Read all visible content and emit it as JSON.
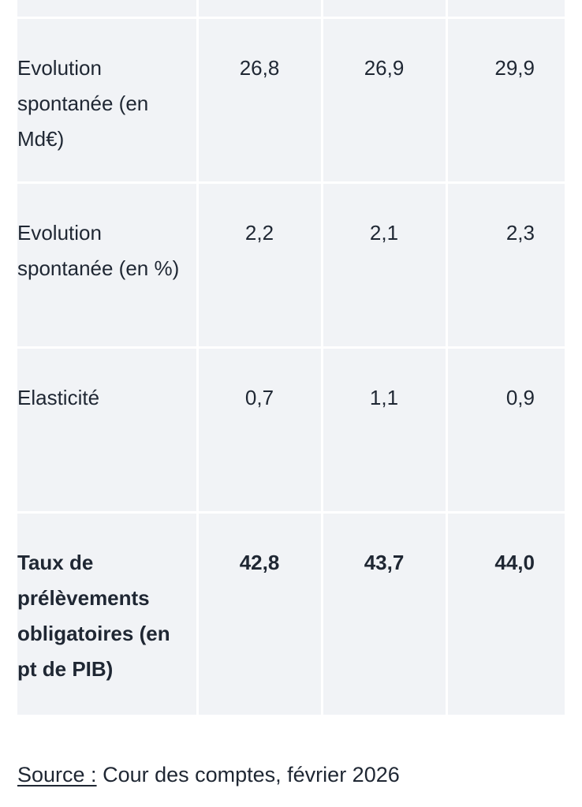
{
  "table": {
    "rows": [
      {
        "label": "Evolution spontanée (en Md€)",
        "values": [
          "26,8",
          "26,9",
          "29,9"
        ]
      },
      {
        "label": "Evolution spontanée (en %)",
        "values": [
          "2,2",
          "2,1",
          "2,3"
        ]
      },
      {
        "label": "Elasticité",
        "values": [
          "0,7",
          "1,1",
          "0,9"
        ]
      },
      {
        "label": "Taux de prélèvements obligatoires (en pt de PIB)",
        "values": [
          "42,8",
          "43,7",
          "44,0"
        ],
        "bold": true
      }
    ]
  },
  "source": {
    "label": "Source :",
    "text": " Cour des comptes, février 2026"
  },
  "colors": {
    "cell_background": "#f1f3f6",
    "text": "#1f2733"
  }
}
